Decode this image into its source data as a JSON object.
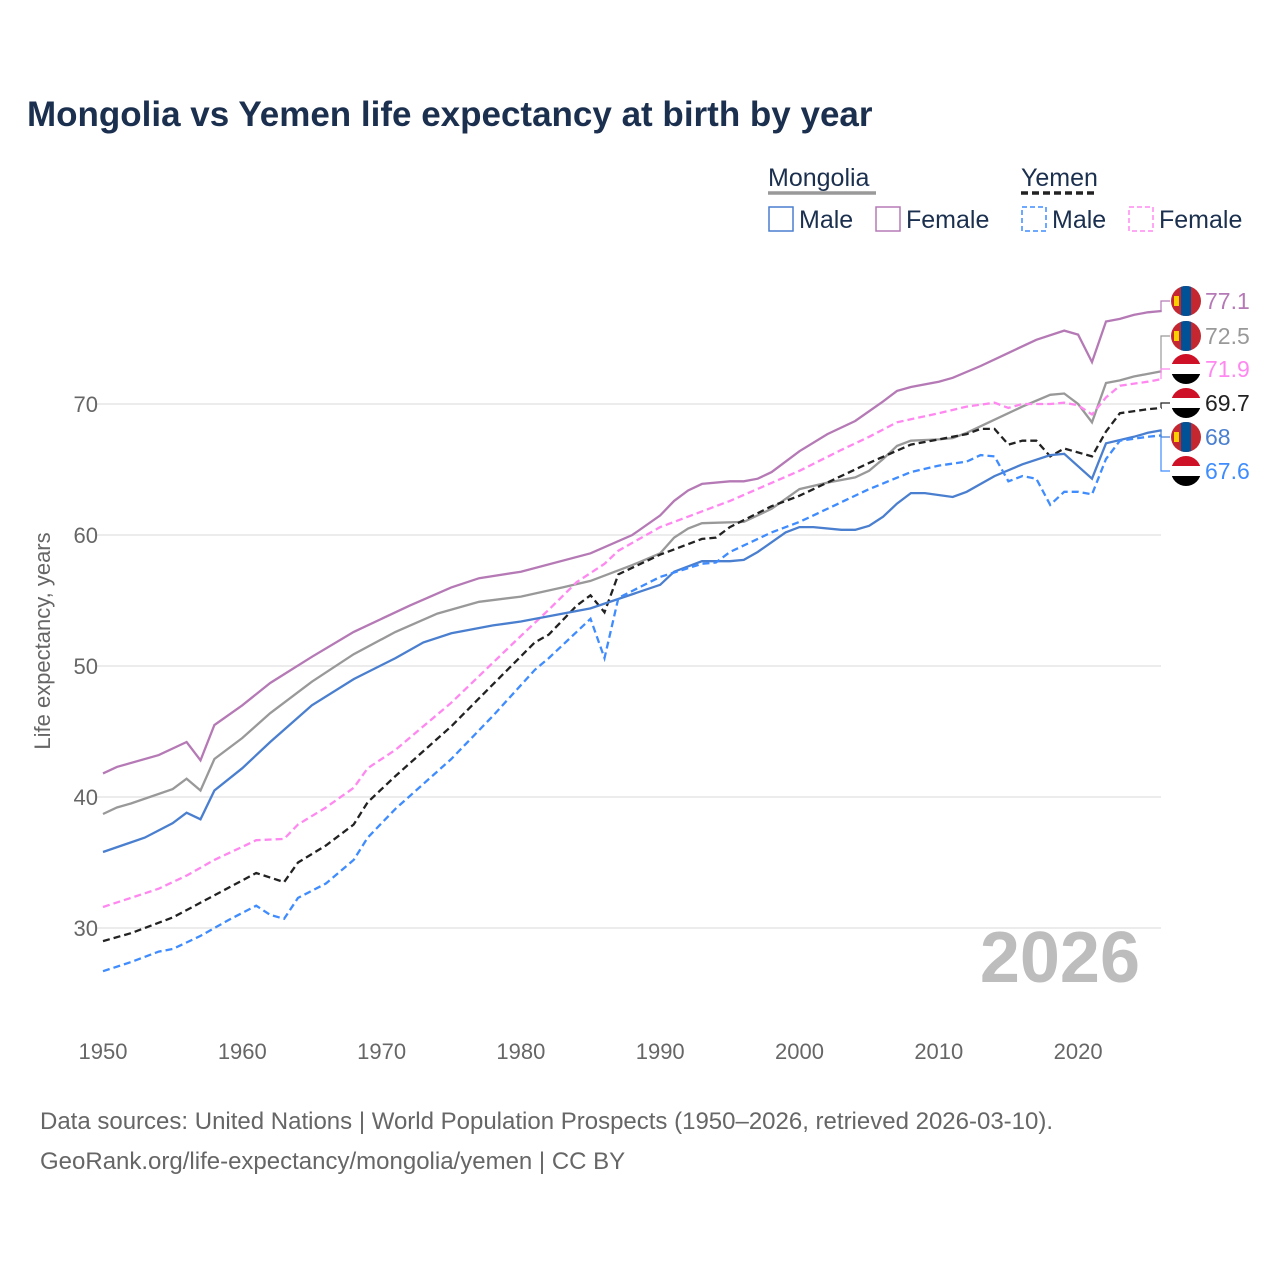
{
  "title": "Mongolia vs Yemen life expectancy at birth by year",
  "year_label": "2026",
  "footer": {
    "line1": "Data sources: United Nations | World Population Prospects (1950–2026, retrieved 2026-03-10).",
    "line2": "GeoRank.org/life-expectancy/mongolia/yemen | CC BY"
  },
  "legend": {
    "mongolia": "Mongolia",
    "yemen": "Yemen",
    "male": "Male",
    "female": "Female"
  },
  "chart_data": {
    "type": "line",
    "title": "Mongolia vs Yemen life expectancy at birth by year",
    "xlabel": "",
    "ylabel": "Life expectancy, years",
    "xlim": [
      1950,
      2026
    ],
    "ylim": [
      25,
      80
    ],
    "xticks": [
      "1950",
      "1960",
      "1970",
      "1980",
      "1990",
      "2000",
      "2010",
      "2020"
    ],
    "yticks": [
      "30",
      "40",
      "50",
      "60",
      "70"
    ],
    "grid": true,
    "legend_position": "top-right",
    "series": [
      {
        "name": "Mongolia Female",
        "color": "#b57ab5",
        "dash": false,
        "end_label": "77.1",
        "flag": "mongolia",
        "x": [
          1950,
          1951,
          1954,
          1956,
          1957,
          1958,
          1960,
          1962,
          1965,
          1968,
          1972,
          1975,
          1977,
          1980,
          1985,
          1988,
          1990,
          1991,
          1992,
          1993,
          1995,
          1996,
          1997,
          1998,
          2000,
          2002,
          2004,
          2006,
          2007,
          2008,
          2010,
          2011,
          2013,
          2015,
          2017,
          2019,
          2020,
          2021,
          2022,
          2023,
          2024,
          2025,
          2026
        ],
        "y": [
          41.8,
          42.3,
          43.2,
          44.2,
          42.8,
          45.5,
          47.0,
          48.7,
          50.7,
          52.6,
          54.6,
          56.0,
          56.7,
          57.2,
          58.6,
          60.0,
          61.5,
          62.6,
          63.4,
          63.9,
          64.1,
          64.1,
          64.3,
          64.8,
          66.4,
          67.7,
          68.7,
          70.2,
          71.0,
          71.3,
          71.7,
          72.0,
          72.9,
          73.9,
          74.9,
          75.6,
          75.3,
          73.2,
          76.3,
          76.5,
          76.8,
          77.0,
          77.1
        ]
      },
      {
        "name": "Mongolia",
        "color": "#999999",
        "dash": false,
        "end_label": "72.5",
        "flag": "mongolia",
        "x": [
          1950,
          1951,
          1952,
          1955,
          1956,
          1957,
          1958,
          1960,
          1962,
          1965,
          1968,
          1971,
          1974,
          1977,
          1980,
          1983,
          1985,
          1988,
          1990,
          1991,
          1992,
          1993,
          1996,
          1998,
          2000,
          2002,
          2004,
          2005,
          2006,
          2007,
          2008,
          2010,
          2011,
          2012,
          2014,
          2016,
          2018,
          2019,
          2020,
          2021,
          2022,
          2023,
          2024,
          2025,
          2026
        ],
        "y": [
          38.7,
          39.2,
          39.5,
          40.6,
          41.4,
          40.5,
          42.9,
          44.5,
          46.4,
          48.8,
          50.9,
          52.6,
          54.0,
          54.9,
          55.3,
          56.0,
          56.5,
          57.7,
          58.6,
          59.8,
          60.5,
          60.9,
          61.0,
          62.0,
          63.5,
          64.0,
          64.4,
          64.9,
          65.8,
          66.8,
          67.2,
          67.3,
          67.4,
          67.8,
          68.8,
          69.8,
          70.7,
          70.8,
          70.0,
          68.6,
          71.6,
          71.8,
          72.1,
          72.3,
          72.5
        ]
      },
      {
        "name": "Yemen Female",
        "color": "#ff88f0",
        "dash": true,
        "end_label": "71.9",
        "flag": "yemen",
        "x": [
          1950,
          1952,
          1954,
          1956,
          1958,
          1960,
          1961,
          1963,
          1964,
          1966,
          1968,
          1969,
          1971,
          1975,
          1980,
          1982,
          1984,
          1986,
          1987,
          1990,
          1995,
          2000,
          2003,
          2005,
          2007,
          2010,
          2012,
          2014,
          2015,
          2016,
          2018,
          2019,
          2020,
          2021,
          2022,
          2023,
          2025,
          2026
        ],
        "y": [
          31.6,
          32.3,
          33.0,
          34.0,
          35.2,
          36.2,
          36.7,
          36.8,
          37.9,
          39.2,
          40.7,
          42.2,
          43.6,
          47.2,
          52.3,
          54.3,
          56.4,
          57.8,
          58.8,
          60.6,
          62.6,
          64.9,
          66.5,
          67.5,
          68.6,
          69.3,
          69.8,
          70.1,
          69.7,
          70.0,
          70.0,
          70.1,
          69.9,
          69.2,
          70.5,
          71.4,
          71.7,
          71.9
        ]
      },
      {
        "name": "Yemen",
        "color": "#222222",
        "dash": true,
        "end_label": "69.7",
        "flag": "yemen",
        "x": [
          1950,
          1952,
          1955,
          1958,
          1961,
          1963,
          1964,
          1966,
          1968,
          1969,
          1971,
          1975,
          1978,
          1981,
          1982,
          1984,
          1985,
          1986,
          1987,
          1990,
          1991,
          1993,
          1994,
          1995,
          1998,
          2000,
          2005,
          2008,
          2010,
          2012,
          2013,
          2014,
          2015,
          2016,
          2017,
          2018,
          2019,
          2021,
          2022,
          2023,
          2025,
          2026
        ],
        "y": [
          29.0,
          29.6,
          30.8,
          32.5,
          34.2,
          33.5,
          35.0,
          36.3,
          37.9,
          39.6,
          41.6,
          45.4,
          48.6,
          51.8,
          52.4,
          54.6,
          55.4,
          54.1,
          57.0,
          58.5,
          58.9,
          59.7,
          59.8,
          60.6,
          62.2,
          63.0,
          65.5,
          66.9,
          67.3,
          67.7,
          68.1,
          68.1,
          66.9,
          67.2,
          67.2,
          66.0,
          66.6,
          66.0,
          67.9,
          69.3,
          69.6,
          69.7
        ]
      },
      {
        "name": "Mongolia Male",
        "color": "#4a7fcf",
        "dash": false,
        "end_label": "68",
        "flag": "mongolia",
        "x": [
          1950,
          1953,
          1955,
          1956,
          1957,
          1958,
          1960,
          1962,
          1965,
          1968,
          1971,
          1973,
          1975,
          1978,
          1980,
          1985,
          1990,
          1991,
          1993,
          1995,
          1996,
          1997,
          1999,
          2000,
          2001,
          2003,
          2004,
          2005,
          2006,
          2007,
          2008,
          2009,
          2011,
          2012,
          2014,
          2016,
          2018,
          2019,
          2021,
          2022,
          2024,
          2025,
          2026
        ],
        "y": [
          35.8,
          36.9,
          38.0,
          38.8,
          38.3,
          40.5,
          42.2,
          44.2,
          47.0,
          49.0,
          50.6,
          51.8,
          52.5,
          53.1,
          53.4,
          54.4,
          56.2,
          57.2,
          58.0,
          58.0,
          58.1,
          58.7,
          60.2,
          60.6,
          60.6,
          60.4,
          60.4,
          60.7,
          61.4,
          62.4,
          63.2,
          63.2,
          62.9,
          63.3,
          64.5,
          65.4,
          66.1,
          66.2,
          64.3,
          67.0,
          67.5,
          67.8,
          68.0
        ]
      },
      {
        "name": "Yemen Male",
        "color": "#3f8cff",
        "dash": true,
        "end_label": "67.6",
        "flag": "yemen",
        "x": [
          1950,
          1952,
          1954,
          1955,
          1957,
          1959,
          1961,
          1962,
          1963,
          1964,
          1966,
          1968,
          1969,
          1971,
          1975,
          1978,
          1981,
          1982,
          1984,
          1985,
          1986,
          1987,
          1990,
          1993,
          1994,
          1995,
          1998,
          2000,
          2001,
          2005,
          2008,
          2010,
          2012,
          2013,
          2014,
          2015,
          2016,
          2017,
          2018,
          2019,
          2020,
          2021,
          2022,
          2023,
          2025,
          2026
        ],
        "y": [
          26.7,
          27.4,
          28.2,
          28.4,
          29.4,
          30.6,
          31.7,
          31.0,
          30.7,
          32.3,
          33.4,
          35.2,
          36.9,
          39.1,
          42.9,
          46.2,
          49.7,
          50.6,
          52.6,
          53.6,
          50.6,
          55.2,
          56.8,
          57.8,
          57.9,
          58.7,
          60.2,
          61.0,
          61.5,
          63.5,
          64.8,
          65.3,
          65.6,
          66.1,
          66.0,
          64.1,
          64.5,
          64.3,
          62.3,
          63.3,
          63.3,
          63.1,
          65.8,
          67.2,
          67.5,
          67.6
        ]
      }
    ]
  }
}
